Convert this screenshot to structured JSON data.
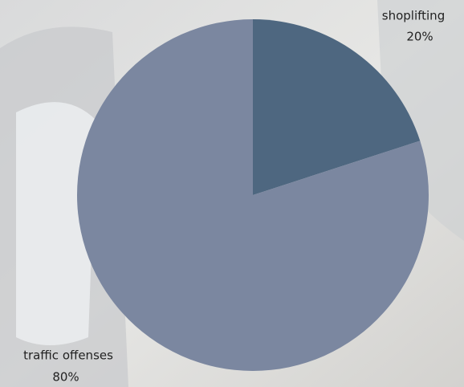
{
  "chart_data": {
    "type": "pie",
    "categories": [
      "shoplifting",
      "traffic offenses"
    ],
    "values": [
      20,
      80
    ],
    "value_labels": [
      "20%",
      "80%"
    ],
    "colors": [
      "#4e6780",
      "#7b87a0"
    ]
  }
}
